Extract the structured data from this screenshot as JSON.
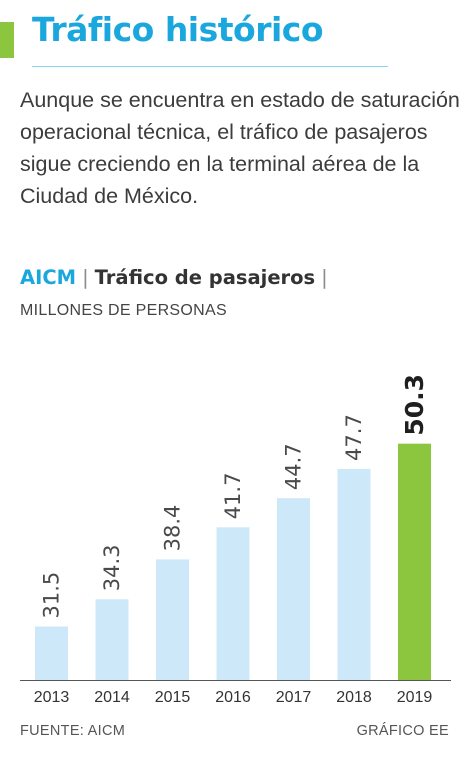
{
  "header": {
    "title": "Tráfico histórico",
    "intro": "Aunque se encuentra en estado de saturación operacional técnica, el tráfico de pasajeros sigue creciendo en la terminal aérea de la Ciudad de México."
  },
  "subhead": {
    "source_label": "AICM",
    "title": "Tráfico de pasajeros",
    "separator": "|",
    "units": "MILLONES DE PERSONAS"
  },
  "footer": {
    "source": "FUENTE: AICM",
    "credit": "GRÁFICO EE"
  },
  "colors": {
    "accent": "#8cc63f",
    "title": "#1aa7de",
    "bar": "#cde9f9",
    "bar_highlight": "#8cc63f",
    "axis": "#555555"
  },
  "chart_data": {
    "type": "bar",
    "categories": [
      "2013",
      "2014",
      "2015",
      "2016",
      "2017",
      "2018",
      "2019"
    ],
    "values": [
      31.5,
      34.3,
      38.4,
      41.7,
      44.7,
      47.7,
      50.3
    ],
    "value_labels": [
      "31.5",
      "34.3",
      "38.4",
      "41.7",
      "44.7",
      "47.7",
      "50.3"
    ],
    "highlight_index": 6,
    "title": "Tráfico de pasajeros",
    "ylabel": "MILLONES DE PERSONAS",
    "ylim": [
      26,
      51.5
    ],
    "grid": false,
    "legend": "none",
    "value_label_orientation": "vertical"
  }
}
